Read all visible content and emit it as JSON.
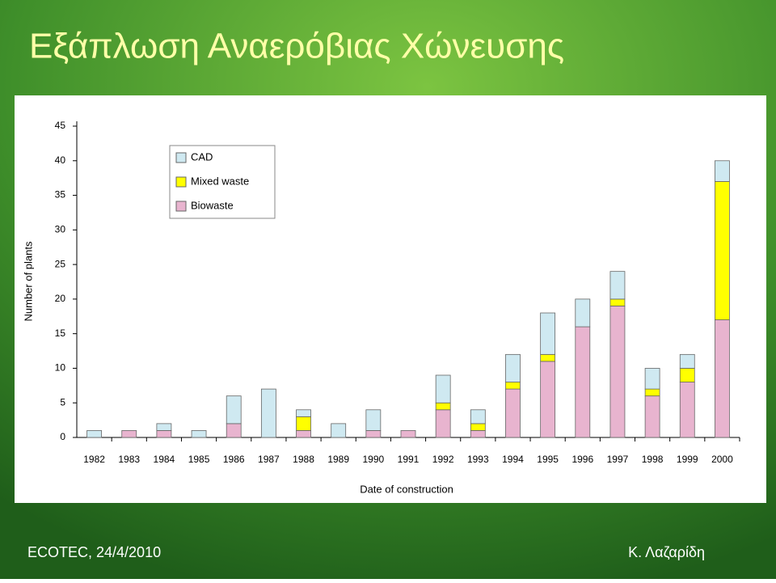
{
  "slide_title": "Εξάπλωση Αναερόβιας Χώνευσης",
  "footer_left": "ECOTEC, 24/4/2010",
  "footer_right": "Κ. Λαζαρίδη",
  "chart_data": {
    "type": "stacked_bar",
    "x_label": "Date of construction",
    "y_label": "Number of plants",
    "categories": [
      "1982",
      "1983",
      "1984",
      "1985",
      "1986",
      "1987",
      "1988",
      "1989",
      "1990",
      "1991",
      "1992",
      "1993",
      "1994",
      "1995",
      "1996",
      "1997",
      "1998",
      "1999",
      "2000"
    ],
    "series": [
      {
        "name": "CAD",
        "color": "#cfe9f1",
        "values": [
          1,
          0,
          1,
          1,
          4,
          7,
          1,
          2,
          3,
          0,
          4,
          2,
          4,
          6,
          4,
          4,
          3,
          2,
          3
        ]
      },
      {
        "name": "Mixed waste",
        "color": "#ffff00",
        "values": [
          0,
          0,
          0,
          0,
          0,
          0,
          2,
          0,
          0,
          0,
          1,
          1,
          1,
          1,
          0,
          1,
          1,
          2,
          20
        ]
      },
      {
        "name": "Biowaste",
        "color": "#e8b4cf",
        "values": [
          0,
          1,
          1,
          0,
          2,
          0,
          1,
          0,
          1,
          1,
          4,
          1,
          7,
          11,
          16,
          19,
          6,
          8,
          17
        ]
      }
    ],
    "ylim": [
      0,
      45
    ],
    "yticks": [
      0,
      5,
      10,
      15,
      20,
      25,
      30,
      35,
      40,
      45
    ],
    "legend": "upper left",
    "grid": false
  }
}
